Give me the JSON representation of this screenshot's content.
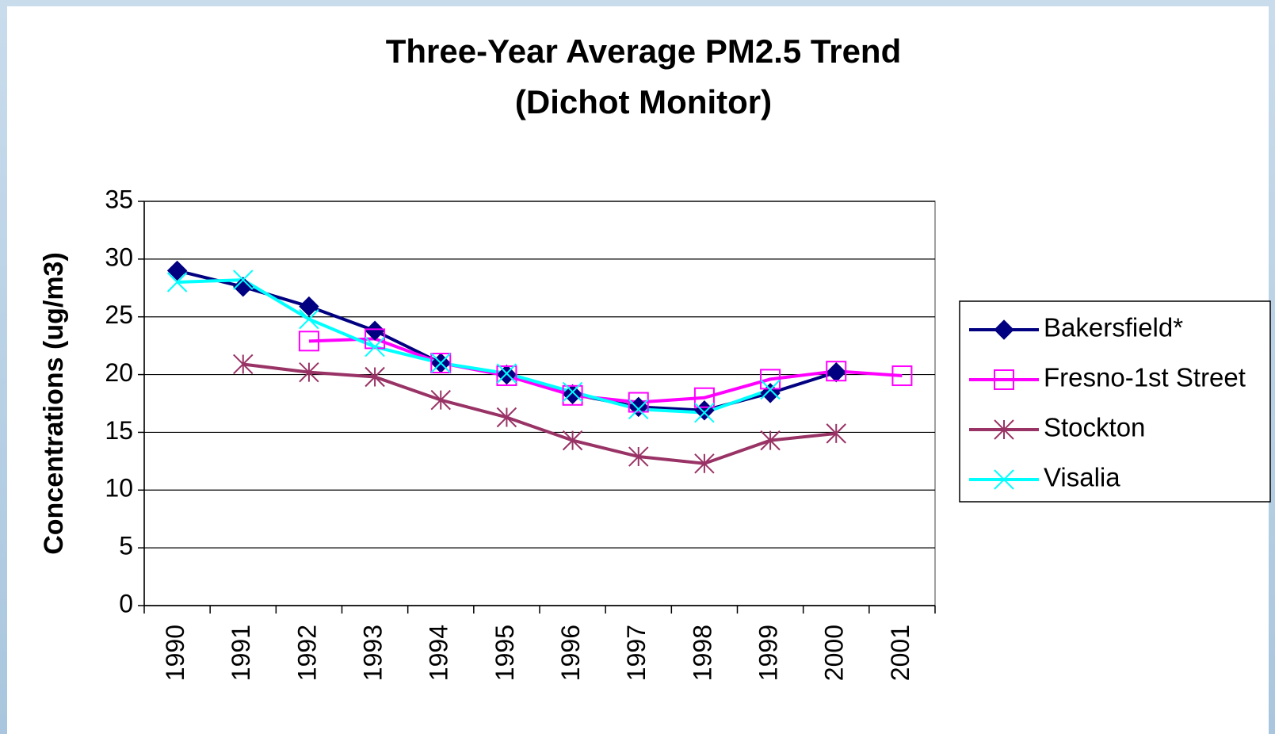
{
  "chart_data": {
    "type": "line",
    "title": "Three-Year Average PM2.5 Trend",
    "subtitle": "(Dichot Monitor)",
    "y_label": "Concentrations (ug/m3)",
    "categories": [
      "1990",
      "1991",
      "1992",
      "1993",
      "1994",
      "1995",
      "1996",
      "1997",
      "1998",
      "1999",
      "2000",
      "2001"
    ],
    "series": [
      {
        "name": "Bakersfield*",
        "color": "#000080",
        "marker": "diamond",
        "values": [
          29,
          27.6,
          25.9,
          23.8,
          21,
          20,
          18.3,
          17.2,
          16.9,
          18.4,
          20.2,
          null
        ]
      },
      {
        "name": "Fresno-1st Street",
        "color": "#ff00ff",
        "marker": "square",
        "values": [
          null,
          null,
          22.9,
          23.1,
          21,
          19.9,
          18.2,
          17.6,
          18,
          19.6,
          20.3,
          19.9
        ]
      },
      {
        "name": "Stockton",
        "color": "#993366",
        "marker": "asterisk",
        "values": [
          null,
          20.9,
          20.2,
          19.8,
          17.8,
          16.3,
          14.3,
          12.9,
          12.3,
          14.3,
          14.9,
          null
        ]
      },
      {
        "name": "Visalia",
        "color": "#00ffff",
        "marker": "x",
        "values": [
          28,
          28.2,
          24.8,
          22.4,
          21,
          20.1,
          18.5,
          17,
          16.7,
          18.7,
          null,
          null
        ]
      }
    ],
    "ylim": [
      0,
      35
    ],
    "yticks": [
      0,
      5,
      10,
      15,
      20,
      25,
      30,
      35
    ],
    "grid": true,
    "legend": "right"
  }
}
